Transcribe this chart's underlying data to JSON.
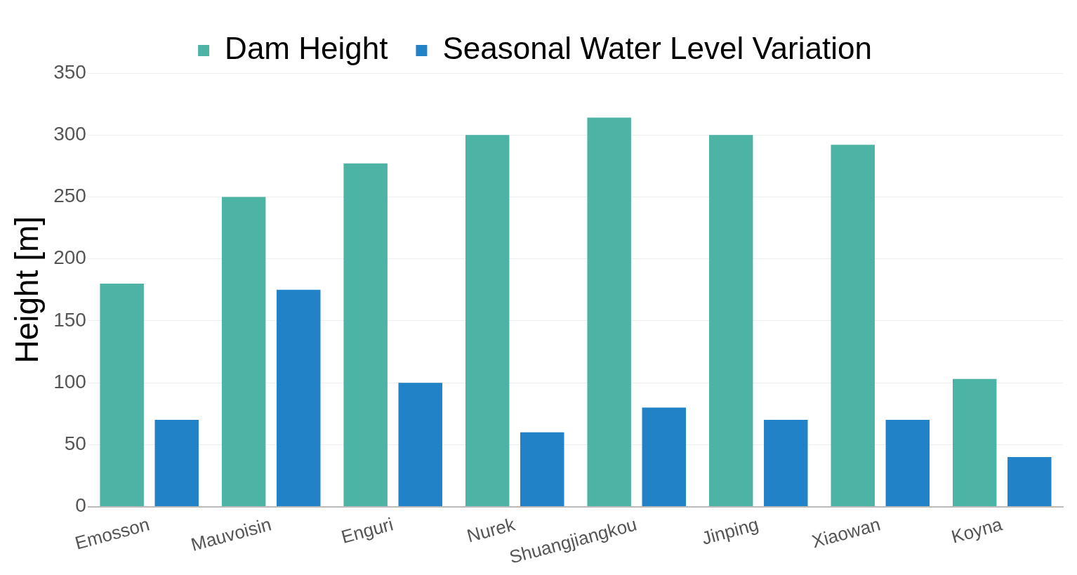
{
  "chart_data": {
    "type": "bar",
    "ylabel": "Height [m]",
    "categories": [
      "Emosson",
      "Mauvoisin",
      "Enguri",
      "Nurek",
      "Shuangjiangkou",
      "Jinping",
      "Xiaowan",
      "Koyna"
    ],
    "series": [
      {
        "name": "Dam Height",
        "color": "#4db3a4",
        "values": [
          180,
          250,
          277,
          300,
          314,
          300,
          292,
          103
        ]
      },
      {
        "name": "Seasonal Water Level Variation",
        "color": "#2282c8",
        "values": [
          70,
          175,
          100,
          60,
          80,
          70,
          70,
          40
        ]
      }
    ],
    "ylim": [
      0,
      350
    ],
    "yticks": [
      0,
      50,
      100,
      150,
      200,
      250,
      300,
      350
    ],
    "grid": "y",
    "legend": "top"
  }
}
